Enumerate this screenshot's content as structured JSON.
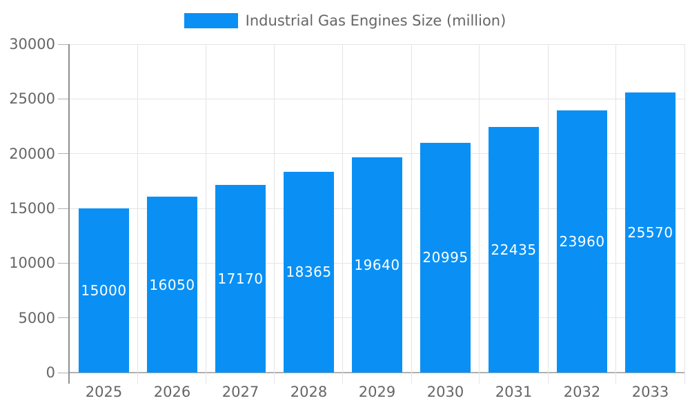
{
  "page": {
    "background": "#ffffff"
  },
  "legend": {
    "label": "Industrial Gas Engines Size (million)",
    "swatch_color": "#0a90f4"
  },
  "chart_data": {
    "type": "bar",
    "title": "Industrial Gas Engines Size (million)",
    "categories": [
      "2025",
      "2026",
      "2027",
      "2028",
      "2029",
      "2030",
      "2031",
      "2032",
      "2033"
    ],
    "values": [
      15000,
      16050,
      17170,
      18365,
      19640,
      20995,
      22435,
      23960,
      25570
    ],
    "xlabel": "",
    "ylabel": "",
    "ylim": [
      0,
      30000
    ],
    "yticks": [
      0,
      5000,
      10000,
      15000,
      20000,
      25000,
      30000
    ],
    "grid": true,
    "legend_position": "top",
    "bar_color": "#0a90f4",
    "bar_label_color": "#ffffff",
    "axis_text_color": "#666666",
    "gridline_color": "#e4e4e4",
    "axis_line_color": "#909090",
    "zero_line_color": "#b0b0b0"
  }
}
